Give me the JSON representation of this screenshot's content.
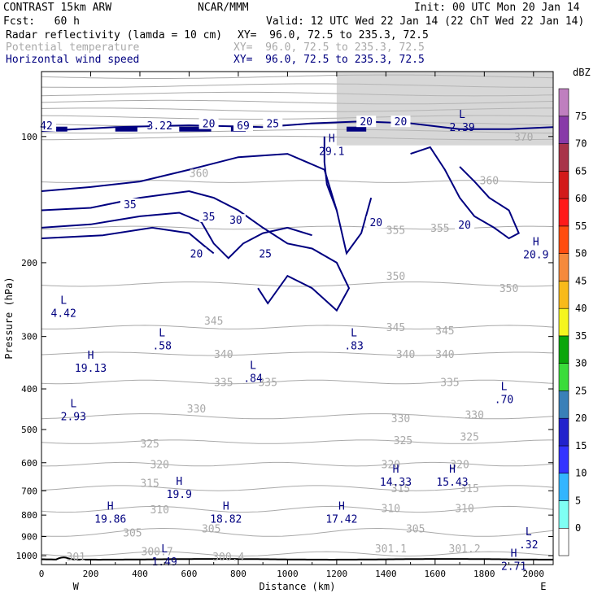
{
  "header": {
    "title_left": "CONTRAST 15km ARW",
    "org": "NCAR/MMM",
    "init": "Init: 00 UTC Mon 20 Jan 14",
    "fcst": "Fcst:   60 h",
    "valid": "Valid: 12 UTC Wed 22 Jan 14 (22 ChT Wed 22 Jan 14)",
    "fields": [
      {
        "name": "Radar reflectivity (lamda = 10 cm)",
        "xy": "XY=  96.0, 72.5 to 235.3, 72.5",
        "color": "#000000"
      },
      {
        "name": "Potential temperature",
        "xy": "XY=  96.0, 72.5 to 235.3, 72.5",
        "color": "#a9a9a9"
      },
      {
        "name": "Horizontal wind speed",
        "xy": "XY=  96.0, 72.5 to 235.3, 72.5",
        "color": "#000080"
      }
    ]
  },
  "chart_data": {
    "type": "contour cross-section",
    "xlabel": "Distance (km)",
    "ylabel": "Pressure (hPa)",
    "xlim": [
      0,
      2080
    ],
    "ylim": [
      1050,
      70
    ],
    "y_scale": "log",
    "x_ticks": [
      0,
      200,
      400,
      600,
      800,
      1000,
      1200,
      1400,
      1600,
      1800,
      2000
    ],
    "y_ticks": [
      100,
      200,
      300,
      400,
      500,
      600,
      700,
      800,
      900,
      1000
    ],
    "x_end_labels": {
      "left": "W",
      "right": "E"
    },
    "colorbar": {
      "unit": "dBZ",
      "levels": [
        -5,
        0,
        5,
        10,
        15,
        20,
        25,
        30,
        35,
        40,
        45,
        50,
        55,
        60,
        65,
        70,
        75
      ],
      "colors": [
        "#ffffff",
        "#7ffff4",
        "#33b5ff",
        "#3333ff",
        "#2222cc",
        "#3a80b8",
        "#3bdc3b",
        "#0aa60a",
        "#f5f51f",
        "#f8ba1a",
        "#f58a3c",
        "#ff4d0f",
        "#ff1a1a",
        "#d21a1a",
        "#a83349",
        "#883aa8",
        "#bf7fbf"
      ]
    },
    "theta_contours": {
      "color": "#a9a9a9",
      "levels": [
        300,
        305,
        310,
        315,
        320,
        325,
        330,
        335,
        340,
        345,
        350,
        355,
        360,
        365,
        370
      ],
      "labels": [
        {
          "text": "301",
          "x": 140,
          "p": 1005
        },
        {
          "text": "300.7",
          "x": 470,
          "p": 975
        },
        {
          "text": "300.4",
          "x": 760,
          "p": 1005
        },
        {
          "text": "301.1",
          "x": 1420,
          "p": 960
        },
        {
          "text": "301.2",
          "x": 1720,
          "p": 960
        },
        {
          "text": "305",
          "x": 370,
          "p": 880
        },
        {
          "text": "305",
          "x": 690,
          "p": 860
        },
        {
          "text": "305",
          "x": 1520,
          "p": 860
        },
        {
          "text": "310",
          "x": 480,
          "p": 775
        },
        {
          "text": "310",
          "x": 1420,
          "p": 770
        },
        {
          "text": "310",
          "x": 1720,
          "p": 770
        },
        {
          "text": "315",
          "x": 440,
          "p": 670
        },
        {
          "text": "315",
          "x": 1460,
          "p": 690
        },
        {
          "text": "315",
          "x": 1740,
          "p": 690
        },
        {
          "text": "320",
          "x": 480,
          "p": 605
        },
        {
          "text": "320",
          "x": 1420,
          "p": 605
        },
        {
          "text": "320",
          "x": 1700,
          "p": 605
        },
        {
          "text": "325",
          "x": 440,
          "p": 540
        },
        {
          "text": "325",
          "x": 1470,
          "p": 530
        },
        {
          "text": "325",
          "x": 1740,
          "p": 520
        },
        {
          "text": "330",
          "x": 630,
          "p": 445
        },
        {
          "text": "330",
          "x": 1460,
          "p": 470
        },
        {
          "text": "330",
          "x": 1760,
          "p": 460
        },
        {
          "text": "335",
          "x": 740,
          "p": 385
        },
        {
          "text": "335",
          "x": 920,
          "p": 385
        },
        {
          "text": "335",
          "x": 1660,
          "p": 385
        },
        {
          "text": "340",
          "x": 740,
          "p": 330
        },
        {
          "text": "340",
          "x": 1480,
          "p": 330
        },
        {
          "text": "340",
          "x": 1640,
          "p": 330
        },
        {
          "text": "345",
          "x": 700,
          "p": 275
        },
        {
          "text": "345",
          "x": 1440,
          "p": 285
        },
        {
          "text": "345",
          "x": 1640,
          "p": 290
        },
        {
          "text": "350",
          "x": 1440,
          "p": 215
        },
        {
          "text": "350",
          "x": 1900,
          "p": 230
        },
        {
          "text": "355",
          "x": 1440,
          "p": 167
        },
        {
          "text": "355",
          "x": 1620,
          "p": 165
        },
        {
          "text": "360",
          "x": 640,
          "p": 122
        },
        {
          "text": "360",
          "x": 1820,
          "p": 127
        },
        {
          "text": "370",
          "x": 1960,
          "p": 100
        }
      ]
    },
    "wind_contours": {
      "color": "#000080",
      "labels": [
        {
          "text": "42",
          "x": 20,
          "p": 94
        },
        {
          "text": "3.22",
          "x": 480,
          "p": 94
        },
        {
          "text": "20",
          "x": 680,
          "p": 93
        },
        {
          "text": "69",
          "x": 820,
          "p": 94
        },
        {
          "text": "25",
          "x": 940,
          "p": 93
        },
        {
          "text": "20",
          "x": 1320,
          "p": 92
        },
        {
          "text": "20",
          "x": 1460,
          "p": 92
        },
        {
          "text": "35",
          "x": 360,
          "p": 145
        },
        {
          "text": "35",
          "x": 680,
          "p": 155
        },
        {
          "text": "30",
          "x": 790,
          "p": 158
        },
        {
          "text": "20",
          "x": 630,
          "p": 190
        },
        {
          "text": "25",
          "x": 910,
          "p": 190
        },
        {
          "text": "20",
          "x": 1360,
          "p": 160
        },
        {
          "text": "20",
          "x": 1720,
          "p": 162
        }
      ]
    },
    "extrema": [
      {
        "type": "H",
        "value": "29.1",
        "x": 1180,
        "p": 105,
        "color": "#000080"
      },
      {
        "type": "L",
        "value": "2.39",
        "x": 1710,
        "p": 92,
        "color": "#000080"
      },
      {
        "type": "H",
        "value": "20.9",
        "x": 2010,
        "p": 185,
        "color": "#000080"
      },
      {
        "type": "L",
        "value": "4.42",
        "x": 90,
        "p": 255,
        "color": "#000080"
      },
      {
        "type": "L",
        "value": ".58",
        "x": 490,
        "p": 305,
        "color": "#000080"
      },
      {
        "type": "L",
        "value": ".83",
        "x": 1270,
        "p": 305,
        "color": "#000080"
      },
      {
        "type": "H",
        "value": "19.13",
        "x": 200,
        "p": 345,
        "color": "#000080"
      },
      {
        "type": "L",
        "value": ".84",
        "x": 860,
        "p": 365,
        "color": "#000080"
      },
      {
        "type": "L",
        "value": ".70",
        "x": 1880,
        "p": 410,
        "color": "#000080"
      },
      {
        "type": "L",
        "value": "2.93",
        "x": 130,
        "p": 450,
        "color": "#000080"
      },
      {
        "type": "H",
        "value": "14.33",
        "x": 1440,
        "p": 645,
        "color": "#000080"
      },
      {
        "type": "H",
        "value": "15.43",
        "x": 1670,
        "p": 645,
        "color": "#000080"
      },
      {
        "type": "H",
        "value": "19.9",
        "x": 560,
        "p": 690,
        "color": "#000080"
      },
      {
        "type": "H",
        "value": "19.86",
        "x": 280,
        "p": 790,
        "color": "#000080"
      },
      {
        "type": "H",
        "value": "18.82",
        "x": 750,
        "p": 790,
        "color": "#000080"
      },
      {
        "type": "H",
        "value": "17.42",
        "x": 1220,
        "p": 790,
        "color": "#000080"
      },
      {
        "type": "L",
        "value": ".32",
        "x": 1980,
        "p": 910,
        "color": "#000080"
      },
      {
        "type": "L",
        "value": "1.49",
        "x": 500,
        "p": 1000,
        "color": "#000080"
      },
      {
        "type": "H",
        "value": "2.71",
        "x": 1920,
        "p": 1025,
        "color": "#000080"
      }
    ]
  }
}
